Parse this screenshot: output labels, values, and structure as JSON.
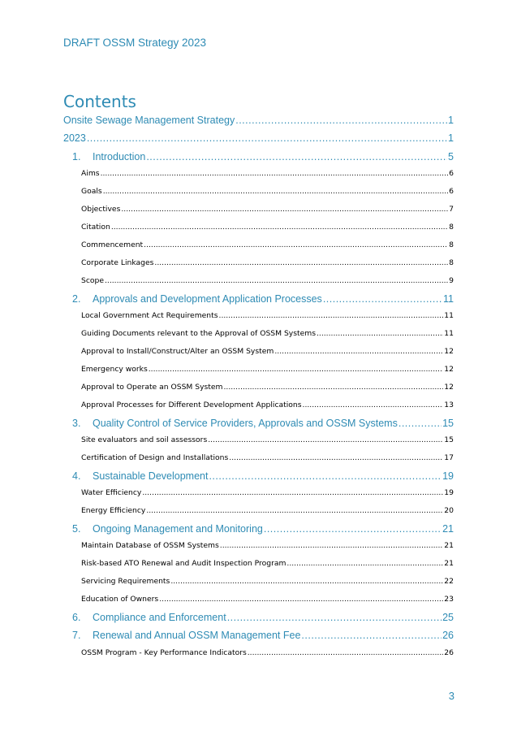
{
  "header": {
    "text": "DRAFT OSSM Strategy 2023"
  },
  "contents_title": "Contents",
  "toc": [
    {
      "level": 0,
      "num": "",
      "label": "Onsite Sewage Management Strategy",
      "page": "1"
    },
    {
      "level": 0,
      "num": "",
      "label": "2023",
      "page": "1"
    },
    {
      "level": 1,
      "num": "1.",
      "label": "Introduction",
      "page": "5"
    },
    {
      "level": 2,
      "num": "",
      "label": "Aims",
      "page": "6"
    },
    {
      "level": 2,
      "num": "",
      "label": "Goals",
      "page": "6"
    },
    {
      "level": 2,
      "num": "",
      "label": "Objectives",
      "page": "7"
    },
    {
      "level": 2,
      "num": "",
      "label": "Citation",
      "page": "8"
    },
    {
      "level": 2,
      "num": "",
      "label": "Commencement",
      "page": "8"
    },
    {
      "level": 2,
      "num": "",
      "label": "Corporate Linkages",
      "page": "8"
    },
    {
      "level": 2,
      "num": "",
      "label": "Scope",
      "page": "9"
    },
    {
      "level": 1,
      "num": "2.",
      "label": "Approvals and Development Application Processes",
      "page": "11"
    },
    {
      "level": 2,
      "num": "",
      "label": "Local Government Act Requirements",
      "page": "11"
    },
    {
      "level": 2,
      "num": "",
      "label": "Guiding Documents relevant to the Approval of OSSM Systems",
      "page": "11"
    },
    {
      "level": 2,
      "num": "",
      "label": "Approval to Install/Construct/Alter an OSSM System",
      "page": "12"
    },
    {
      "level": 2,
      "num": "",
      "label": "Emergency works",
      "page": "12"
    },
    {
      "level": 2,
      "num": "",
      "label": "Approval to Operate an OSSM System",
      "page": "12"
    },
    {
      "level": 2,
      "num": "",
      "label": "Approval Processes for Different Development Applications",
      "page": "13"
    },
    {
      "level": 1,
      "num": "3.",
      "label": "Quality Control of Service Providers, Approvals and OSSM Systems",
      "page": "15"
    },
    {
      "level": 2,
      "num": "",
      "label": "Site evaluators and soil assessors",
      "page": "15"
    },
    {
      "level": 2,
      "num": "",
      "label": "Certification of Design and Installations",
      "page": "17"
    },
    {
      "level": 1,
      "num": "4.",
      "label": "Sustainable Development",
      "page": "19"
    },
    {
      "level": 2,
      "num": "",
      "label": "Water Efficiency",
      "page": "19"
    },
    {
      "level": 2,
      "num": "",
      "label": "Energy Efficiency",
      "page": "20"
    },
    {
      "level": 1,
      "num": "5.",
      "label": "Ongoing Management and Monitoring",
      "page": "21"
    },
    {
      "level": 2,
      "num": "",
      "label": "Maintain Database of OSSM Systems",
      "page": "21"
    },
    {
      "level": 2,
      "num": "",
      "label": "Risk-based ATO Renewal and Audit Inspection Program",
      "page": "21"
    },
    {
      "level": 2,
      "num": "",
      "label": "Servicing Requirements",
      "page": "22"
    },
    {
      "level": 2,
      "num": "",
      "label": "Education of Owners",
      "page": "23"
    },
    {
      "level": 1,
      "num": "6.",
      "label": "Compliance and Enforcement",
      "page": "25"
    },
    {
      "level": 1,
      "num": "7.",
      "label": "Renewal and Annual OSSM Management Fee",
      "page": "26"
    },
    {
      "level": 2,
      "num": "",
      "label": "OSSM Program - Key Performance Indicators",
      "page": "26"
    }
  ],
  "footer": {
    "page_number": "3"
  }
}
